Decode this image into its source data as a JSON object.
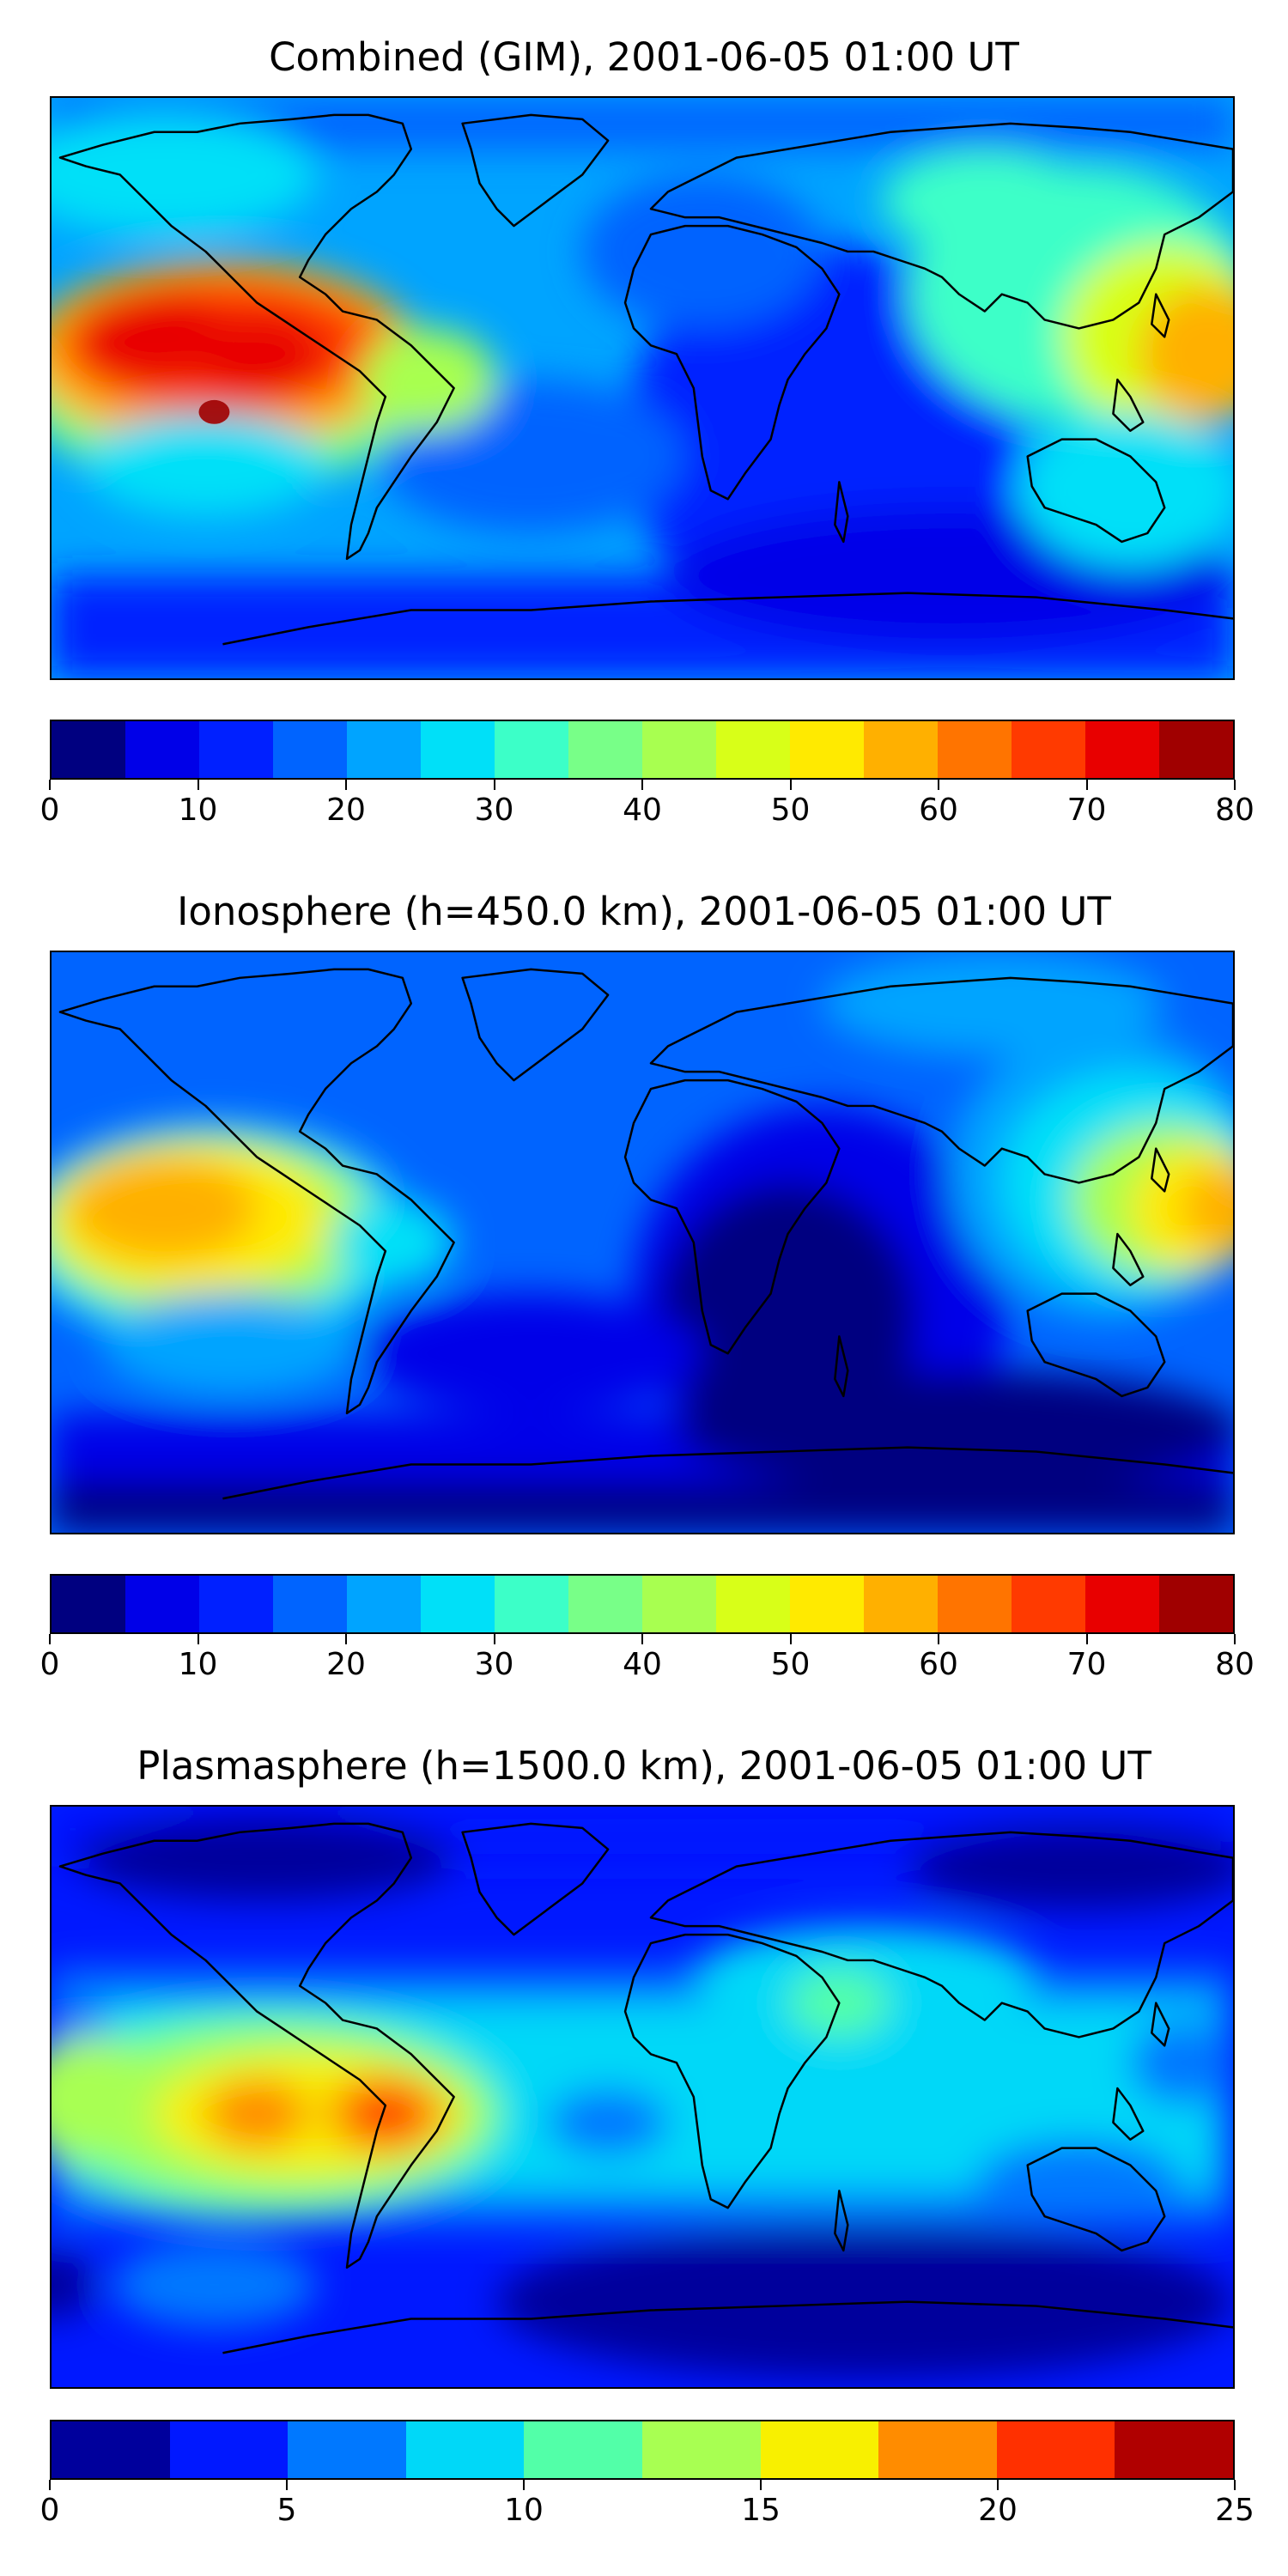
{
  "panels": [
    {
      "title": "Combined (GIM), 2001-06-05 01:00 UT",
      "colorbar": {
        "min": 0,
        "max": 80,
        "step": 5,
        "colors": [
          "#000080",
          "#0000e8",
          "#0020ff",
          "#0064ff",
          "#00a4ff",
          "#00e0f8",
          "#3cffc8",
          "#78ff88",
          "#a8ff50",
          "#d8ff18",
          "#ffea00",
          "#ffb000",
          "#ff7400",
          "#ff3a00",
          "#e80000",
          "#a00000"
        ],
        "ticks": [
          "0",
          "10",
          "20",
          "30",
          "40",
          "50",
          "60",
          "70",
          "80"
        ]
      }
    },
    {
      "title": "Ionosphere  (h=450.0 km), 2001-06-05 01:00 UT",
      "colorbar": {
        "min": 0,
        "max": 80,
        "step": 5,
        "colors": [
          "#000080",
          "#0000e8",
          "#0020ff",
          "#0064ff",
          "#00a4ff",
          "#00e0f8",
          "#3cffc8",
          "#78ff88",
          "#a8ff50",
          "#d8ff18",
          "#ffea00",
          "#ffb000",
          "#ff7400",
          "#ff3a00",
          "#e80000",
          "#a00000"
        ],
        "ticks": [
          "0",
          "10",
          "20",
          "30",
          "40",
          "50",
          "60",
          "70",
          "80"
        ]
      }
    },
    {
      "title": "Plasmasphere (h=1500.0 km), 2001-06-05 01:00 UT",
      "colorbar": {
        "min": 0,
        "max": 25,
        "step": 2.5,
        "colors": [
          "#00009c",
          "#0018ff",
          "#0078ff",
          "#00d8f8",
          "#52ffa8",
          "#a8ff52",
          "#f8f000",
          "#ff8c00",
          "#ff3000",
          "#b00000"
        ],
        "ticks": [
          "0",
          "5",
          "10",
          "15",
          "20",
          "25"
        ]
      }
    }
  ]
}
